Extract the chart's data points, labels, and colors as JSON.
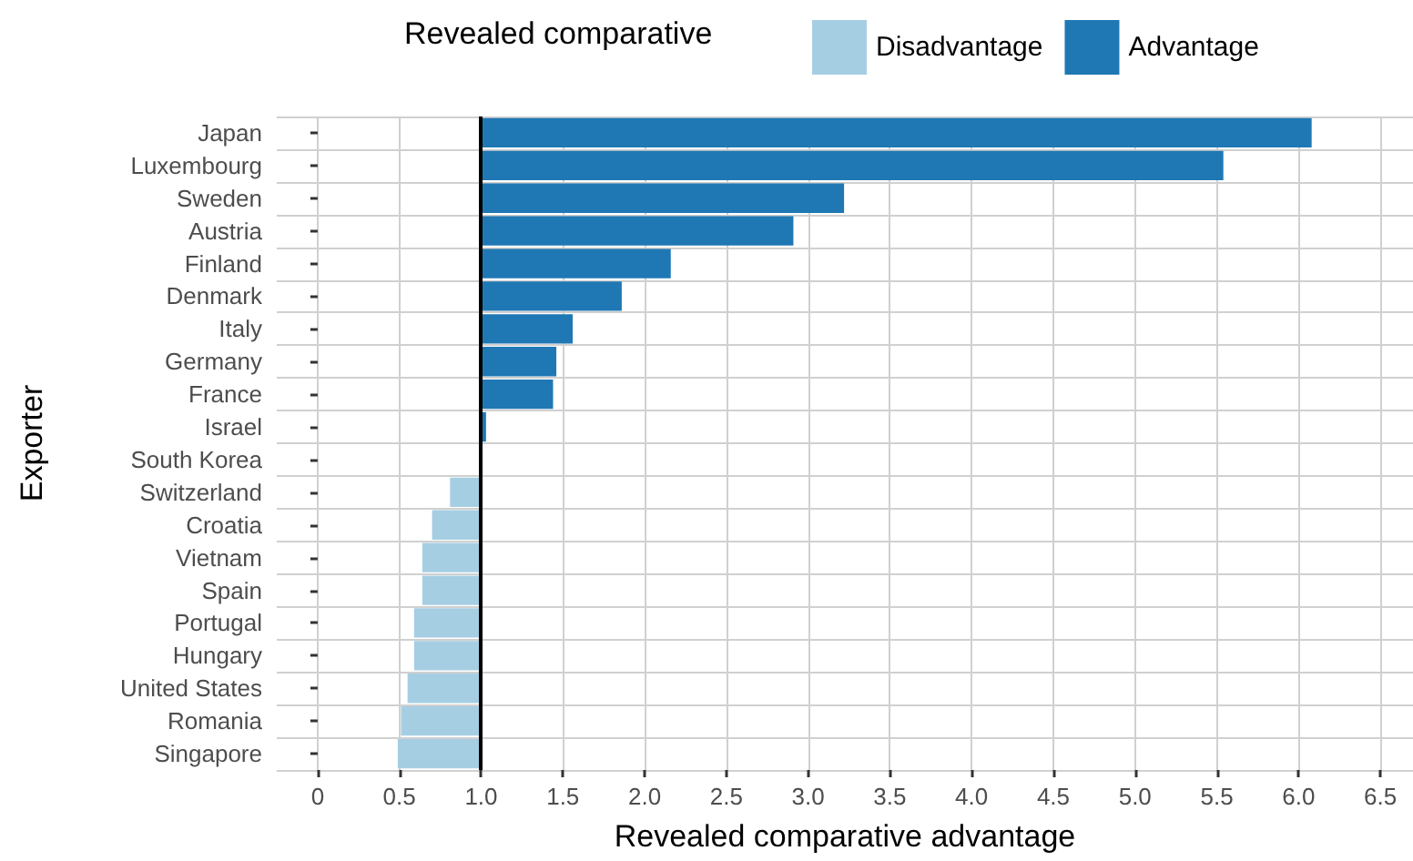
{
  "chart_data": {
    "type": "bar",
    "orientation": "horizontal",
    "xlabel": "Revealed comparative advantage",
    "ylabel": "Exporter",
    "legend_title": "Revealed comparative",
    "legend": "top",
    "categories": [
      "Japan",
      "Luxembourg",
      "Sweden",
      "Austria",
      "Finland",
      "Denmark",
      "Italy",
      "Germany",
      "France",
      "Israel",
      "South Korea",
      "Switzerland",
      "Croatia",
      "Vietnam",
      "Spain",
      "Portugal",
      "Hungary",
      "United States",
      "Romania",
      "Singapore"
    ],
    "series": [
      {
        "name": "Disadvantage",
        "color": "#a6cee3",
        "base": [
          null,
          null,
          null,
          null,
          null,
          null,
          null,
          null,
          null,
          null,
          null,
          1,
          1,
          1,
          1,
          1,
          1,
          1,
          1,
          1
        ],
        "values": [
          null,
          null,
          null,
          null,
          null,
          null,
          null,
          null,
          null,
          null,
          null,
          -0.19,
          -0.3,
          -0.36,
          -0.36,
          -0.41,
          -0.41,
          -0.45,
          -0.49,
          -0.51
        ]
      },
      {
        "name": "Advantage",
        "color": "#1f78b4",
        "base": [
          1,
          1,
          1,
          1,
          1,
          1,
          1,
          1,
          1,
          1,
          null,
          null,
          null,
          null,
          null,
          null,
          null,
          null,
          null,
          null
        ],
        "values": [
          5.08,
          4.54,
          2.22,
          1.91,
          1.16,
          0.86,
          0.56,
          0.46,
          0.44,
          0.03,
          null,
          null,
          null,
          null,
          null,
          null,
          null,
          null,
          null,
          null
        ]
      }
    ],
    "xlim": [
      -0.25,
      6.7
    ],
    "xticks": [
      0,
      0.5,
      {
        "value": 1,
        "label": "1.0"
      },
      1.5,
      {
        "value": 2,
        "label": "2.0"
      },
      2.5,
      {
        "value": 3,
        "label": "3.0"
      },
      3.5,
      {
        "value": 4,
        "label": "4.0"
      },
      4.5,
      {
        "value": 5,
        "label": "5.0"
      },
      5.5,
      {
        "value": 6,
        "label": "6.0"
      },
      6.5
    ],
    "ref_lines": [
      {
        "axis": "x",
        "value": 1,
        "color": "#000000"
      }
    ],
    "grid": true
  }
}
